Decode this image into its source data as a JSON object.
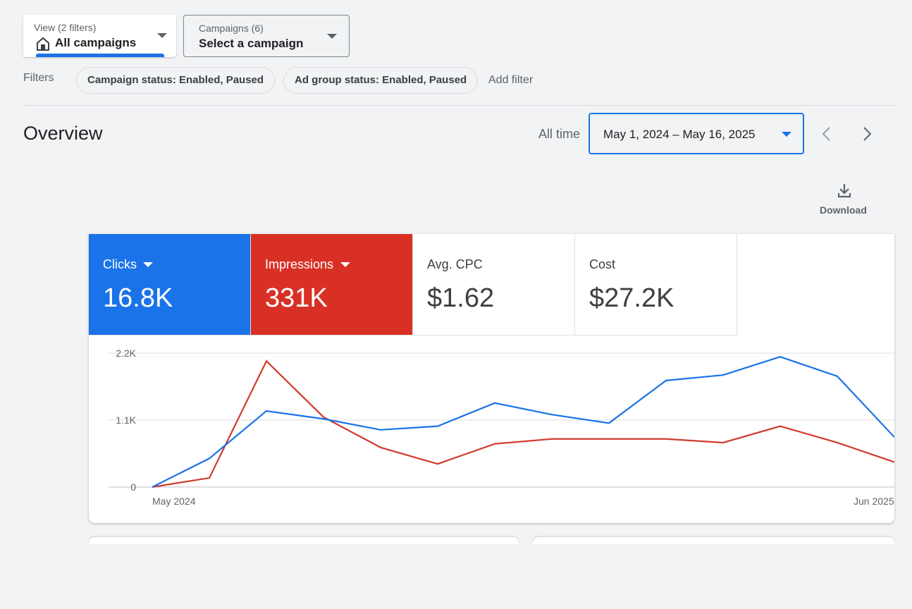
{
  "toolbar": {
    "view": {
      "label": "View (2 filters)",
      "value": "All campaigns"
    },
    "campaigns": {
      "label": "Campaigns (6)",
      "value": "Select a campaign"
    }
  },
  "filters": {
    "label": "Filters",
    "chips": [
      "Campaign status: Enabled, Paused",
      "Ad group status: Enabled, Paused"
    ],
    "add": "Add filter"
  },
  "overview": {
    "title": "Overview",
    "range_label": "All time",
    "date_range": "May 1, 2024 – May 16, 2025",
    "download": "Download"
  },
  "metrics": [
    {
      "value": "16.8K"
    },
    {
      "value": "331K"
    },
    {
      "label": "Avg. CPC",
      "value": "$1.62"
    },
    {
      "label": "Cost",
      "value": "$27.2K"
    }
  ],
  "chart_data": {
    "type": "line",
    "categories": [
      "May 2024",
      null,
      null,
      null,
      null,
      null,
      null,
      null,
      null,
      null,
      null,
      null,
      null,
      "Jun 2025"
    ],
    "series": [
      {
        "name": "Clicks",
        "color": "#1a73e8",
        "values": [
          0,
          470,
          1250,
          1120,
          940,
          1000,
          1380,
          1190,
          1050,
          1750,
          1840,
          2140,
          1820,
          820
        ]
      },
      {
        "name": "Impressions",
        "color": "#d03a2e",
        "values": [
          0,
          150,
          2070,
          1150,
          650,
          380,
          710,
          790,
          790,
          790,
          730,
          1000,
          730,
          410
        ]
      }
    ],
    "ylim": [
      0,
      2200
    ],
    "yticks": [
      0,
      {
        "value": 1100,
        "label": "1.1K"
      },
      {
        "value": 2200,
        "label": "2.2K"
      }
    ],
    "grid": true
  }
}
